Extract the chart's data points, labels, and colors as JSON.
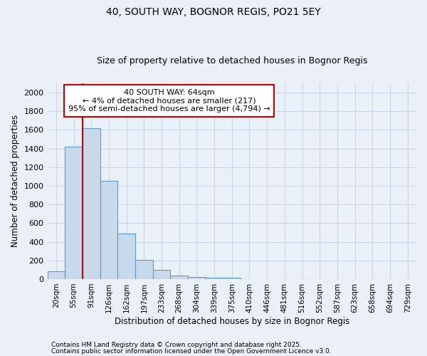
{
  "title1": "40, SOUTH WAY, BOGNOR REGIS, PO21 5EY",
  "title2": "Size of property relative to detached houses in Bognor Regis",
  "xlabel": "Distribution of detached houses by size in Bognor Regis",
  "ylabel": "Number of detached properties",
  "categories": [
    "20sqm",
    "55sqm",
    "91sqm",
    "126sqm",
    "162sqm",
    "197sqm",
    "233sqm",
    "268sqm",
    "304sqm",
    "339sqm",
    "375sqm",
    "410sqm",
    "446sqm",
    "481sqm",
    "516sqm",
    "552sqm",
    "587sqm",
    "623sqm",
    "658sqm",
    "694sqm",
    "729sqm"
  ],
  "values": [
    80,
    1420,
    1620,
    1055,
    490,
    205,
    100,
    35,
    25,
    15,
    15,
    0,
    0,
    0,
    0,
    0,
    0,
    0,
    0,
    0,
    0
  ],
  "bar_color": "#c9d9ec",
  "bar_edge_color": "#5b9bd5",
  "background_color": "#eaf0f8",
  "grid_color": "#c8d4e8",
  "property_line_x": 1.5,
  "annotation_line1": "40 SOUTH WAY: 64sqm",
  "annotation_line2": "← 4% of detached houses are smaller (217)",
  "annotation_line3": "95% of semi-detached houses are larger (4,794) →",
  "annotation_box_color": "#ffffff",
  "annotation_box_edge": "#cc0000",
  "vline_color": "#cc0000",
  "ylim": [
    0,
    2100
  ],
  "yticks": [
    0,
    200,
    400,
    600,
    800,
    1000,
    1200,
    1400,
    1600,
    1800,
    2000
  ],
  "footnote1": "Contains HM Land Registry data © Crown copyright and database right 2025.",
  "footnote2": "Contains public sector information licensed under the Open Government Licence v3.0."
}
